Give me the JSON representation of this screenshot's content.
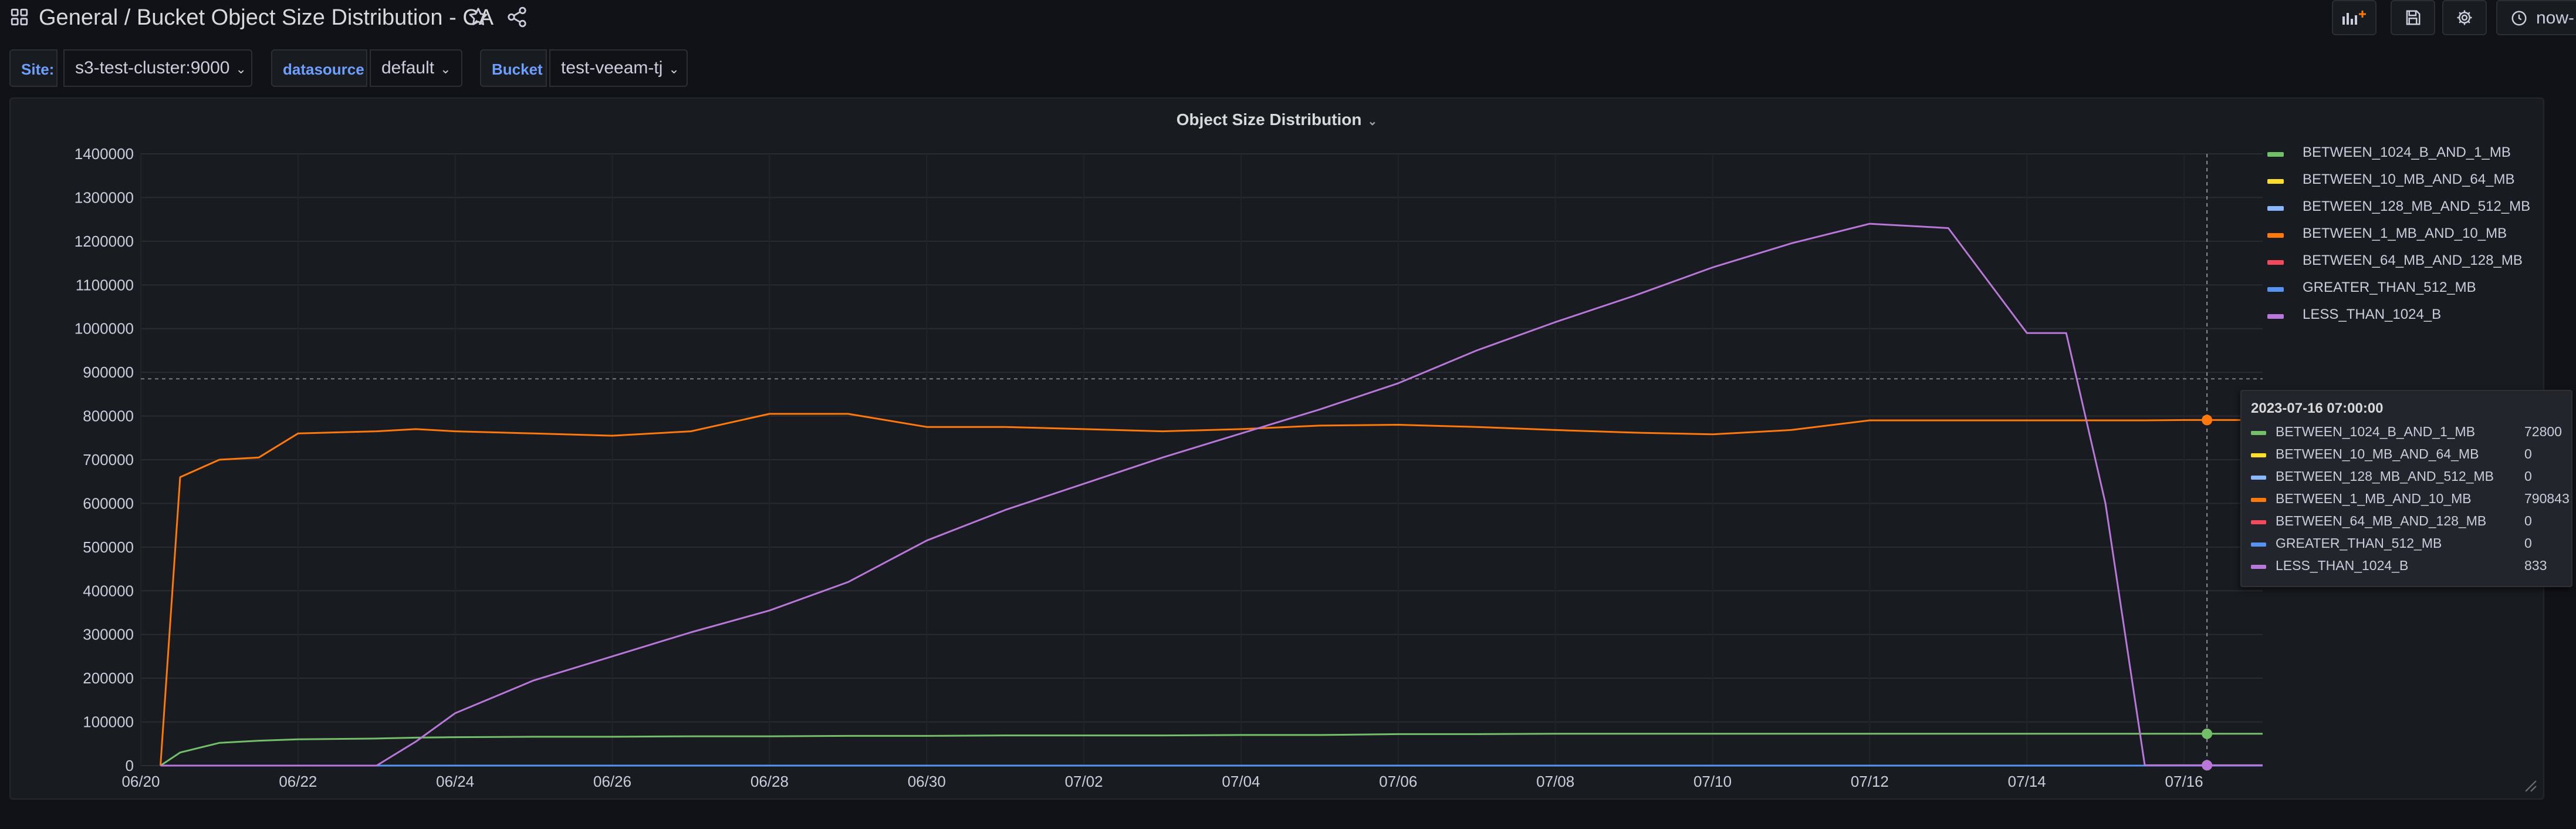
{
  "header": {
    "folder": "General",
    "separator": "/",
    "dashboard_title": "Bucket Object Size Distribution - CA",
    "time_range": "now-"
  },
  "variables": [
    {
      "label": "Site:",
      "value": "s3-test-cluster:9000"
    },
    {
      "label": "datasource",
      "value": "default"
    },
    {
      "label": "Bucket",
      "value": "test-veeam-tj"
    }
  ],
  "panel": {
    "title": "Object Size Distribution"
  },
  "colors": {
    "BETWEEN_1024_B_AND_1_MB": "#73bf69",
    "BETWEEN_10_MB_AND_64_MB": "#fade2a",
    "BETWEEN_128_MB_AND_512_MB": "#8ab8ff",
    "BETWEEN_1_MB_AND_10_MB": "#ff780a",
    "BETWEEN_64_MB_AND_128_MB": "#f2495c",
    "GREATER_THAN_512_MB": "#5794f2",
    "LESS_THAN_1024_B": "#b877d9",
    "accent": "#6e9fff"
  },
  "tooltip": {
    "time": "2023-07-16 07:00:00",
    "rows": [
      {
        "name": "BETWEEN_1024_B_AND_1_MB",
        "value": "72800"
      },
      {
        "name": "BETWEEN_10_MB_AND_64_MB",
        "value": "0"
      },
      {
        "name": "BETWEEN_128_MB_AND_512_MB",
        "value": "0"
      },
      {
        "name": "BETWEEN_1_MB_AND_10_MB",
        "value": "790843"
      },
      {
        "name": "BETWEEN_64_MB_AND_128_MB",
        "value": "0"
      },
      {
        "name": "GREATER_THAN_512_MB",
        "value": "0"
      },
      {
        "name": "LESS_THAN_1024_B",
        "value": "833"
      }
    ]
  },
  "chart_data": {
    "type": "line",
    "title": "Object Size Distribution",
    "xlabel": "",
    "ylabel": "",
    "ylim": [
      0,
      1400000
    ],
    "xlim": [
      "2023-06-20",
      "2023-07-17"
    ],
    "y_ticks": [
      "0",
      "100000",
      "200000",
      "300000",
      "400000",
      "500000",
      "600000",
      "700000",
      "800000",
      "900000",
      "1000000",
      "1100000",
      "1200000",
      "1300000",
      "1400000"
    ],
    "x_ticks": [
      "06/20",
      "06/22",
      "06/24",
      "06/26",
      "06/28",
      "06/30",
      "07/02",
      "07/04",
      "07/06",
      "07/08",
      "07/10",
      "07/12",
      "07/14",
      "07/16"
    ],
    "grid": true,
    "legend_position": "right",
    "hover_time": "2023-07-16 07:00",
    "threshold_line": 885000,
    "x": [
      "2023-06-20 06:00",
      "2023-06-20 12:00",
      "2023-06-21 00:00",
      "2023-06-21 12:00",
      "2023-06-22 00:00",
      "2023-06-23 00:00",
      "2023-06-23 12:00",
      "2023-06-24 00:00",
      "2023-06-25 00:00",
      "2023-06-26 00:00",
      "2023-06-27 00:00",
      "2023-06-28 00:00",
      "2023-06-29 00:00",
      "2023-06-30 00:00",
      "2023-07-01 00:00",
      "2023-07-02 00:00",
      "2023-07-03 00:00",
      "2023-07-04 00:00",
      "2023-07-05 00:00",
      "2023-07-06 00:00",
      "2023-07-07 00:00",
      "2023-07-08 00:00",
      "2023-07-09 00:00",
      "2023-07-10 00:00",
      "2023-07-11 00:00",
      "2023-07-12 00:00",
      "2023-07-13 00:00",
      "2023-07-14 00:00",
      "2023-07-14 12:00",
      "2023-07-15 00:00",
      "2023-07-15 12:00",
      "2023-07-16 00:00",
      "2023-07-17 00:00"
    ],
    "series": [
      {
        "name": "BETWEEN_1024_B_AND_1_MB",
        "values": [
          0,
          30000,
          52000,
          57000,
          60000,
          62000,
          64000,
          65000,
          66000,
          66000,
          67000,
          67000,
          68000,
          68000,
          69000,
          69000,
          69000,
          70000,
          70000,
          72000,
          72000,
          73000,
          73000,
          73000,
          73000,
          73000,
          73000,
          73000,
          73000,
          72800,
          72800,
          72800,
          72800
        ]
      },
      {
        "name": "BETWEEN_10_MB_AND_64_MB",
        "values": [
          0,
          0,
          0,
          0,
          0,
          0,
          0,
          0,
          0,
          0,
          0,
          0,
          0,
          0,
          0,
          0,
          0,
          0,
          0,
          0,
          0,
          0,
          0,
          0,
          0,
          0,
          0,
          0,
          0,
          0,
          0,
          0,
          0
        ]
      },
      {
        "name": "BETWEEN_128_MB_AND_512_MB",
        "values": [
          0,
          0,
          0,
          0,
          0,
          0,
          0,
          0,
          0,
          0,
          0,
          0,
          0,
          0,
          0,
          0,
          0,
          0,
          0,
          0,
          0,
          0,
          0,
          0,
          0,
          0,
          0,
          0,
          0,
          0,
          0,
          0,
          0
        ]
      },
      {
        "name": "BETWEEN_1_MB_AND_10_MB",
        "values": [
          0,
          660000,
          700000,
          705000,
          760000,
          765000,
          770000,
          765000,
          760000,
          755000,
          765000,
          805000,
          805000,
          775000,
          775000,
          770000,
          765000,
          770000,
          778000,
          780000,
          775000,
          768000,
          762000,
          758000,
          768000,
          790000,
          790000,
          790000,
          790000,
          790000,
          790000,
          790843,
          790843
        ]
      },
      {
        "name": "BETWEEN_64_MB_AND_128_MB",
        "values": [
          0,
          0,
          0,
          0,
          0,
          0,
          0,
          0,
          0,
          0,
          0,
          0,
          0,
          0,
          0,
          0,
          0,
          0,
          0,
          0,
          0,
          0,
          0,
          0,
          0,
          0,
          0,
          0,
          0,
          0,
          0,
          0,
          0
        ]
      },
      {
        "name": "GREATER_THAN_512_MB",
        "values": [
          0,
          0,
          0,
          0,
          0,
          0,
          0,
          0,
          0,
          0,
          0,
          0,
          0,
          0,
          0,
          0,
          0,
          0,
          0,
          0,
          0,
          0,
          0,
          0,
          0,
          0,
          0,
          0,
          0,
          0,
          0,
          0,
          0
        ]
      },
      {
        "name": "LESS_THAN_1024_B",
        "values": [
          0,
          0,
          0,
          0,
          0,
          0,
          55000,
          120000,
          195000,
          250000,
          305000,
          355000,
          420000,
          515000,
          585000,
          645000,
          705000,
          760000,
          815000,
          875000,
          950000,
          1015000,
          1075000,
          1140000,
          1195000,
          1240000,
          1230000,
          990000,
          990000,
          600000,
          833,
          833,
          833
        ]
      }
    ]
  }
}
